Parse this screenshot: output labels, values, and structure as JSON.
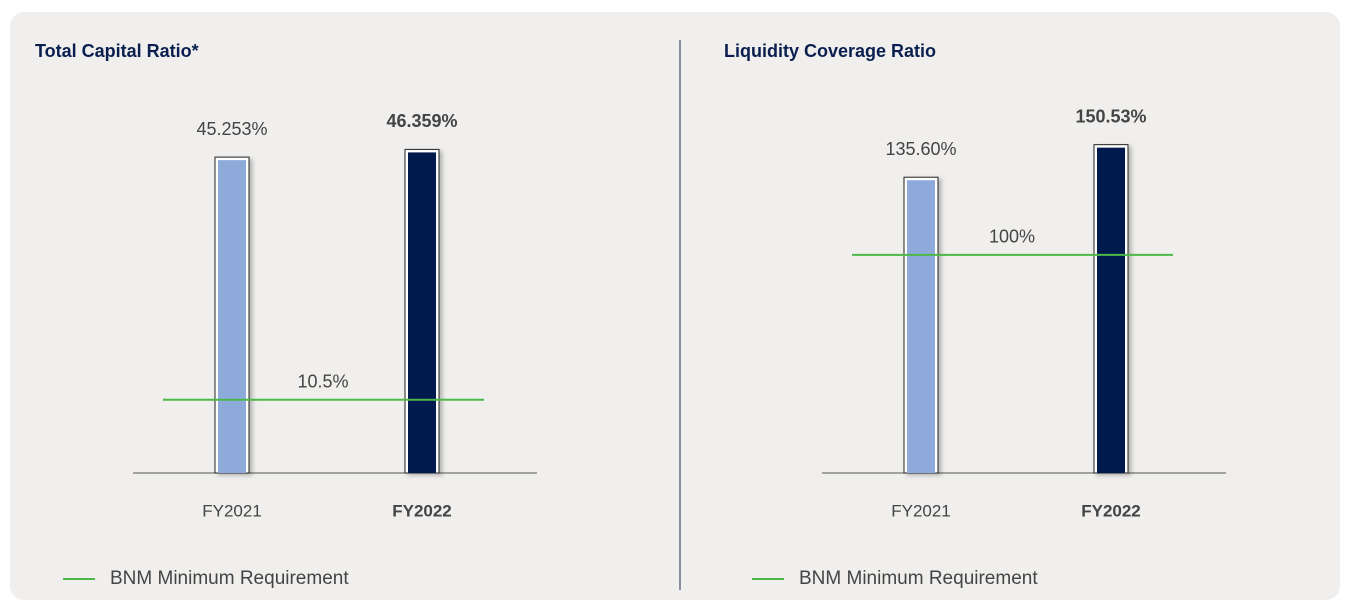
{
  "chart_data": [
    {
      "type": "bar",
      "title": "Total Capital Ratio*",
      "categories": [
        "FY2021",
        "FY2022"
      ],
      "values": [
        45.253,
        46.359
      ],
      "value_labels": [
        "45.253%",
        "46.359%"
      ],
      "colors": [
        "#8eaadb",
        "#001a4d"
      ],
      "ylim": [
        0,
        50
      ],
      "reference": {
        "name": "BNM Minimum Requirement",
        "value": 10.5,
        "label": "10.5%",
        "color": "#4cb848"
      }
    },
    {
      "type": "bar",
      "title": "Liquidity Coverage Ratio",
      "categories": [
        "FY2021",
        "FY2022"
      ],
      "values": [
        135.6,
        150.53
      ],
      "value_labels": [
        "135.60%",
        "150.53%"
      ],
      "colors": [
        "#8eaadb",
        "#001a4d"
      ],
      "ylim": [
        0,
        160
      ],
      "reference": {
        "name": "BNM Minimum Requirement",
        "value": 100,
        "label": "100%",
        "color": "#4cb848"
      }
    }
  ]
}
